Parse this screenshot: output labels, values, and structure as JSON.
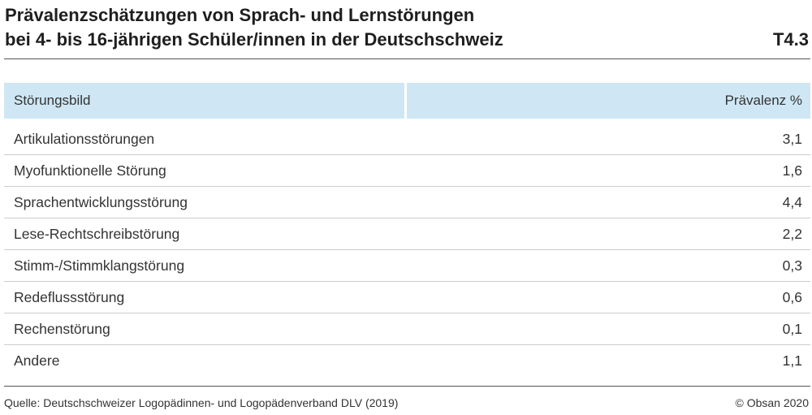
{
  "title": {
    "line1": "Prävalenzschätzungen von Sprach- und Lernstörungen",
    "line2": "bei 4- bis 16-jährigen Schüler/innen in der Deutschschweiz",
    "table_id": "T4.3"
  },
  "table": {
    "headers": {
      "left": "Störungsbild",
      "right": "Prävalenz %"
    },
    "rows": [
      {
        "label": "Artikulationsstörungen",
        "value": "3,1"
      },
      {
        "label": "Myofunktionelle Störung",
        "value": "1,6"
      },
      {
        "label": "Sprachentwicklungsstörung",
        "value": "4,4"
      },
      {
        "label": "Lese-Rechtschreibstörung",
        "value": "2,2"
      },
      {
        "label": "Stimm-/Stimmklangstörung",
        "value": "0,3"
      },
      {
        "label": "Redeflussstörung",
        "value": "0,6"
      },
      {
        "label": "Rechenstörung",
        "value": "0,1"
      },
      {
        "label": "Andere",
        "value": "1,1"
      }
    ]
  },
  "footer": {
    "source": "Quelle: Deutschschweizer Logopädinnen- und Logopädenverband DLV (2019)",
    "copyright": "© Obsan 2020"
  },
  "colors": {
    "header_bg": "#cfe7f4"
  }
}
